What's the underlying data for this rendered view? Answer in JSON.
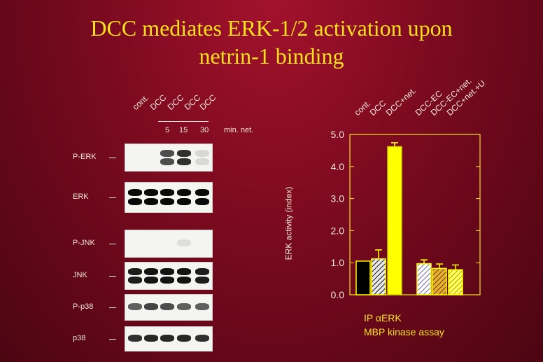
{
  "title": {
    "line1": "DCC mediates ERK-1/2 activation upon",
    "line2": "netrin-1 binding"
  },
  "blot": {
    "lanes": [
      "cont.",
      "DCC",
      "DCC",
      "DCC",
      "DCC"
    ],
    "time_points": [
      "5",
      "15",
      "30"
    ],
    "time_unit": "min. net.",
    "rows": [
      {
        "label": "P-ERK",
        "intensity": [
          0,
          0,
          0.65,
          0.8,
          0.1
        ]
      },
      {
        "label": "ERK",
        "intensity": [
          1,
          1,
          1,
          1,
          1
        ]
      },
      {
        "label": "P-JNK",
        "intensity": [
          0,
          0,
          0,
          0.05,
          0
        ]
      },
      {
        "label": "JNK",
        "intensity": [
          0.9,
          0.95,
          0.95,
          0.95,
          0.9
        ]
      },
      {
        "label": "P-p38",
        "intensity": [
          0.6,
          0.7,
          0.65,
          0.6,
          0.6
        ]
      },
      {
        "label": "p38",
        "intensity": [
          0.8,
          0.85,
          0.85,
          0.85,
          0.8
        ]
      }
    ]
  },
  "chart_data": {
    "type": "bar",
    "categories": [
      "cont.",
      "DCC",
      "DCC+net.",
      "DCC-EC",
      "DCC-EC+net.",
      "DCC+net.+U"
    ],
    "values": [
      1.05,
      1.12,
      4.62,
      0.97,
      0.82,
      0.78
    ],
    "errors": [
      0,
      0.28,
      0.12,
      0.12,
      0.14,
      0.15
    ],
    "ylabel": "ERK activity (index)",
    "ylim": [
      0,
      5
    ],
    "yticks": [
      "0.0",
      "1.0",
      "2.0",
      "3.0",
      "4.0",
      "5.0"
    ],
    "bar_colors": [
      "#000000",
      "#000000",
      "#ffff00",
      "#b8b8d0",
      "#8a5a10",
      "#ffff00"
    ],
    "grid": false,
    "caption_line1": "IP αERK",
    "caption_line2": "MBP kinase assay"
  },
  "colors": {
    "title_text": "#f3e11f",
    "label_text": "#f1e7d8",
    "chart_axis": "#f3e11f"
  }
}
